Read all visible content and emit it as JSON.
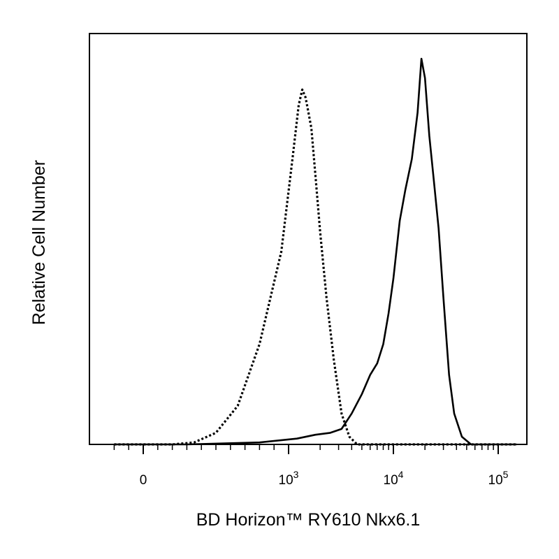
{
  "chart_data": {
    "type": "line",
    "title": "",
    "xlabel": "BD Horizon™ RY610  Nkx6.1",
    "ylabel": "Relative Cell Number",
    "x_scale": "biexponential",
    "xlim": [
      -200,
      150000
    ],
    "ylim": [
      0,
      100
    ],
    "x_ticks": [
      {
        "value": 0,
        "base": "0",
        "exp": ""
      },
      {
        "value": 1000,
        "base": "10",
        "exp": "3"
      },
      {
        "value": 10000,
        "base": "10",
        "exp": "4"
      },
      {
        "value": 100000,
        "base": "10",
        "exp": "5"
      }
    ],
    "grid": false,
    "legend": "none",
    "series": [
      {
        "style": "dotted",
        "color": "#000000",
        "x": [
          200,
          350,
          500,
          650,
          800,
          950,
          1100,
          1250,
          1350,
          1450,
          1550,
          1650,
          1800,
          2000,
          2300,
          2700,
          3200,
          3800,
          4500
        ],
        "y": [
          0,
          0.5,
          3,
          10,
          26,
          50,
          75,
          88,
          92,
          90,
          86,
          82,
          70,
          55,
          38,
          22,
          8,
          2,
          0
        ]
      },
      {
        "style": "solid",
        "color": "#000000",
        "x": [
          300,
          800,
          1200,
          1800,
          2500,
          3200,
          4000,
          5000,
          6000,
          7000,
          8000,
          9000,
          10000,
          11500,
          13000,
          15000,
          17000,
          18500,
          20000,
          22000,
          24000,
          27000,
          30000,
          34000,
          38000,
          45000,
          55000
        ],
        "y": [
          0,
          0.5,
          1.5,
          2.5,
          3,
          4,
          8,
          13,
          18,
          21,
          26,
          34,
          43,
          58,
          66,
          74,
          86,
          100,
          95,
          80,
          70,
          56,
          38,
          18,
          8,
          2,
          0
        ]
      }
    ]
  }
}
